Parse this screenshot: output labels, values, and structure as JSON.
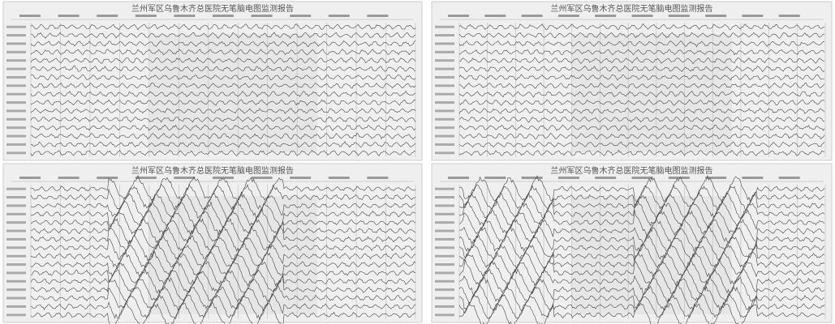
{
  "panels": [
    {
      "title": "兰州军区乌鲁木齐总医院无笔脑电图监测报告"
    },
    {
      "title": "兰州军区乌鲁木齐总医院无笔脑电图监测报告"
    },
    {
      "title": "兰州军区乌鲁木齐总医院无笔脑电图监测报告"
    },
    {
      "title": "兰州军区乌鲁木齐总医院无笔脑电图监测报告"
    }
  ]
}
